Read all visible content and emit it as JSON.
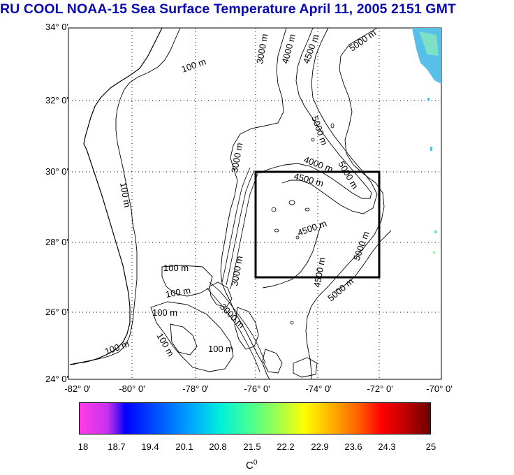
{
  "title": "RU COOL  NOAA-15 Sea Surface Temperature April 11, 2005 2151 GMT",
  "lat_labels": [
    "34° 0'",
    "32° 0'",
    "30° 0'",
    "28° 0'",
    "26° 0'",
    "24° 0'"
  ],
  "lon_labels": [
    "-82° 0'",
    "-80° 0'",
    "-78° 0'",
    "-76° 0'",
    "-74° 0'",
    "-72° 0'",
    "-70° 0'"
  ],
  "contour_labels": [
    "100 m",
    "100 m",
    "100 m",
    "100 m",
    "100 m",
    "100 m",
    "100 m",
    "100 m",
    "3000 m",
    "3000 m",
    "3000 m",
    "3000 m",
    "4000 m",
    "4000 m",
    "4500 m",
    "4500 m",
    "4500 m",
    "4500 m",
    "5000 m",
    "5000 m",
    "5000 m",
    "5000 m",
    "5000 m"
  ],
  "colorbar": {
    "ticks": [
      "18",
      "18.7",
      "19.4",
      "20.1",
      "20.8",
      "21.5",
      "22.2",
      "22.9",
      "23.6",
      "24.3",
      "25"
    ],
    "unit": "C",
    "unit_sup": "0",
    "min": 18,
    "max": 25
  },
  "colors": {
    "title": "#0a0ab4",
    "frame": "#000000",
    "land": "#ffffff",
    "gridline": "#000000",
    "sst_patch": "#66c8e8"
  },
  "study_box": {
    "lon_range": [
      -76,
      -72
    ],
    "lat_range": [
      27,
      30
    ]
  }
}
